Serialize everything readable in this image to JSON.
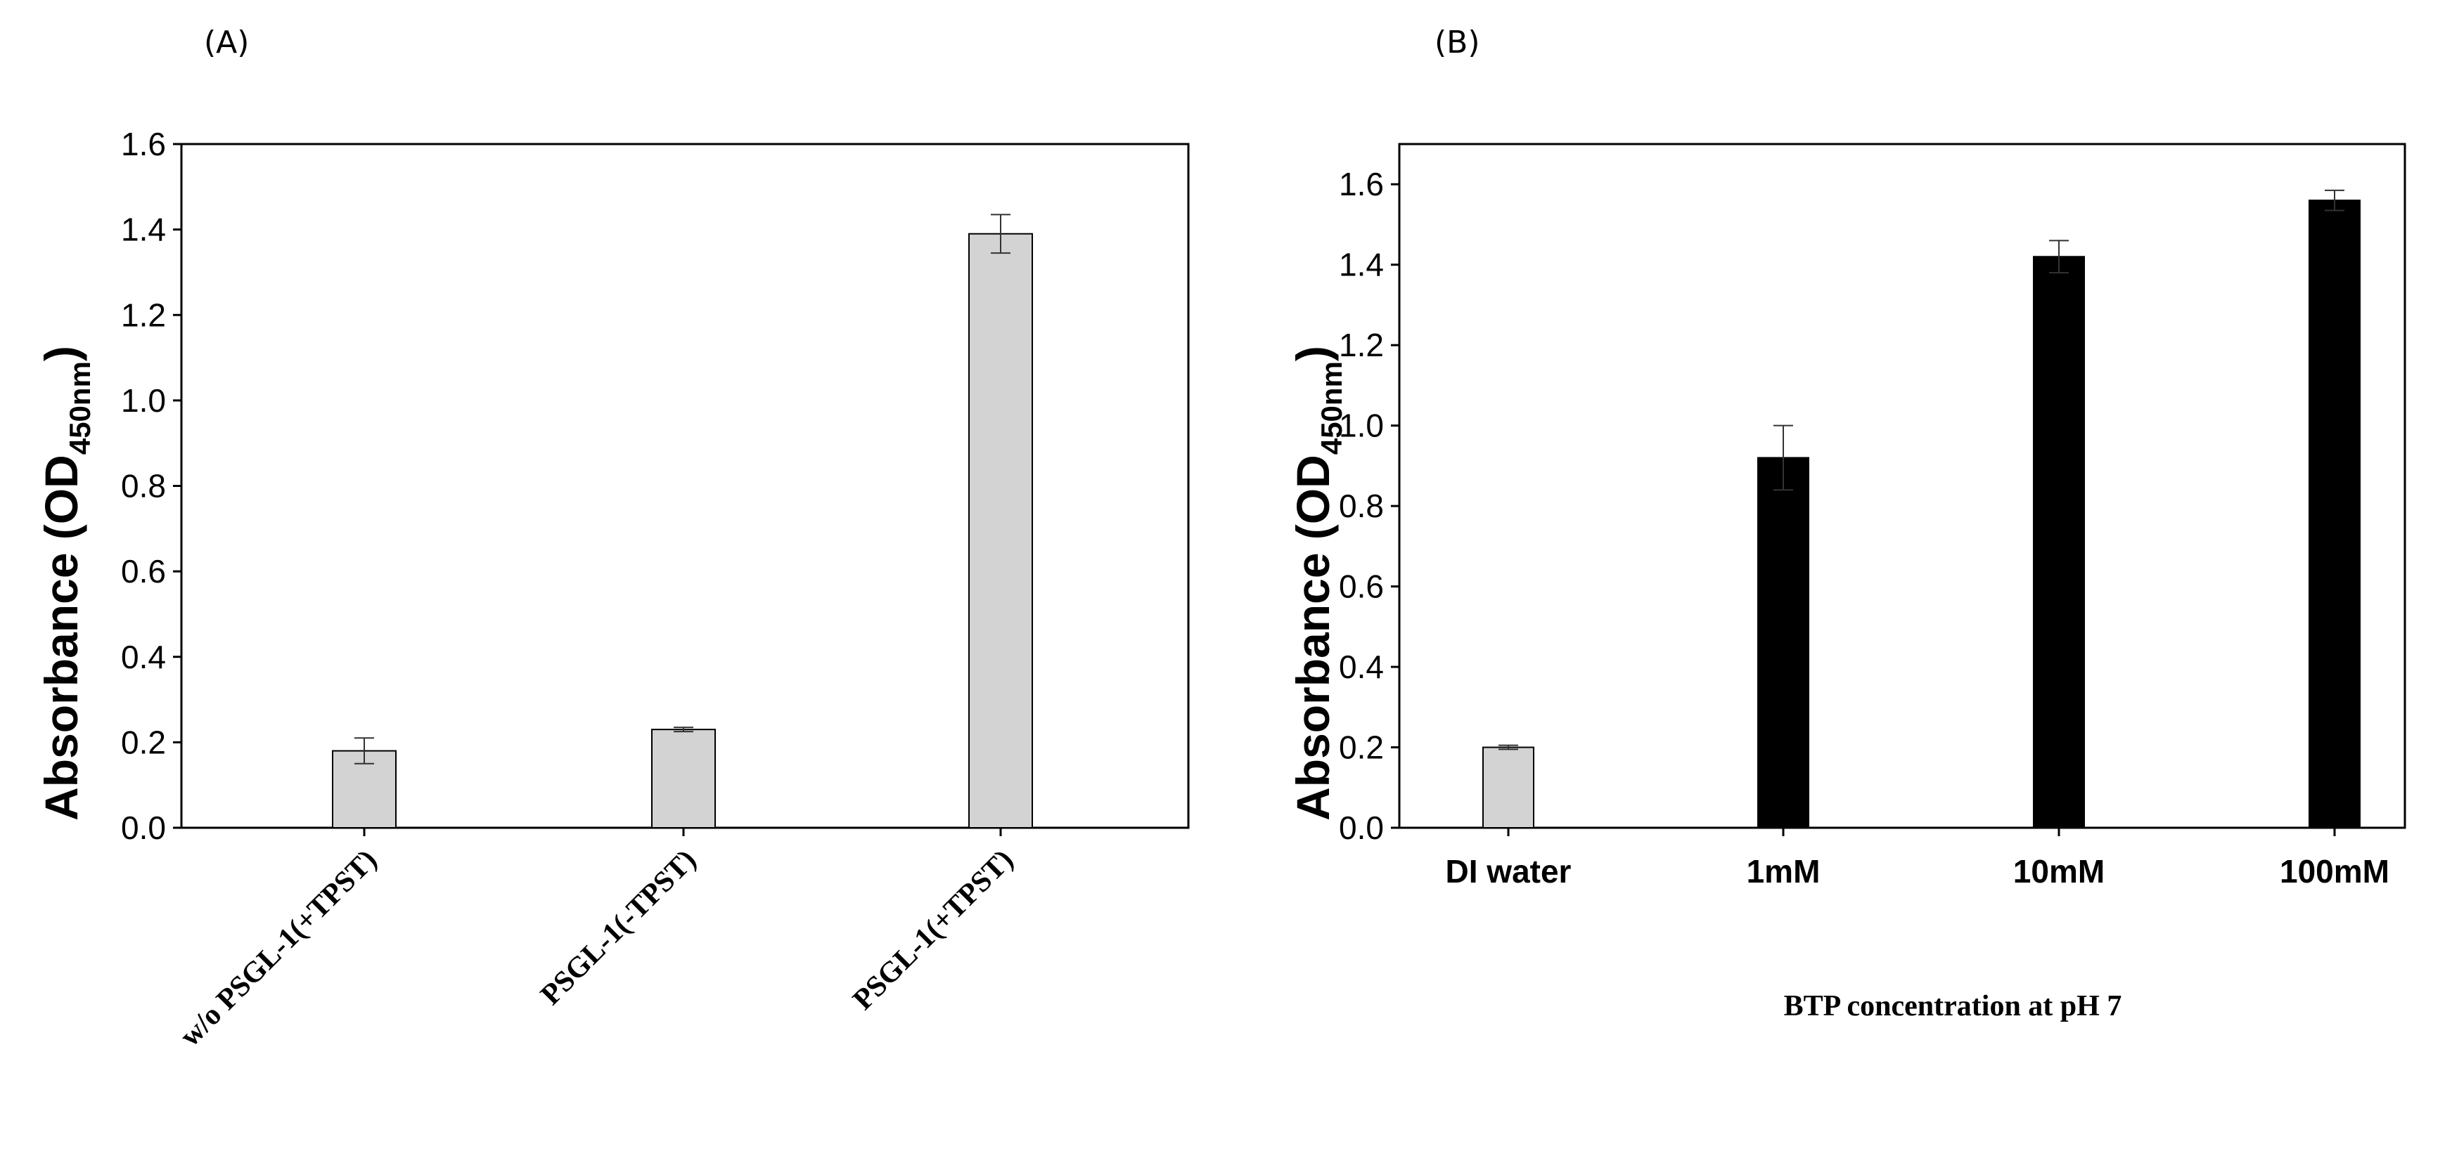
{
  "chart_data": [
    {
      "panel_label": "(A)",
      "type": "bar",
      "ylabel": "Absorbance (OD",
      "ylabel_sub": "450nm",
      "ylabel_close": ")",
      "xlabel": "",
      "ylim": [
        0,
        1.6
      ],
      "yticks": [
        0.0,
        0.2,
        0.4,
        0.6,
        0.8,
        1.0,
        1.2,
        1.4,
        1.6
      ],
      "categories": [
        "w/o PSGL-1(+TPST)",
        "PSGL-1(-TPST)",
        "PSGL-1(+TPST)"
      ],
      "values": [
        0.18,
        0.23,
        1.39
      ],
      "errors": [
        0.03,
        0.005,
        0.045
      ],
      "bar_colors": [
        "#d3d3d3",
        "#d3d3d3",
        "#d3d3d3"
      ]
    },
    {
      "panel_label": "(B)",
      "type": "bar",
      "ylabel": "Absorbance (OD",
      "ylabel_sub": "450nm",
      "ylabel_close": ")",
      "xlabel": "BTP concentration at pH 7",
      "ylim": [
        0,
        1.7
      ],
      "yticks": [
        0.0,
        0.2,
        0.4,
        0.6,
        0.8,
        1.0,
        1.2,
        1.4,
        1.6
      ],
      "categories": [
        "DI water",
        "1mM",
        "10mM",
        "100mM"
      ],
      "values": [
        0.2,
        0.92,
        1.42,
        1.56
      ],
      "errors": [
        0.005,
        0.08,
        0.04,
        0.025
      ],
      "bar_colors": [
        "#d3d3d3",
        "#000000",
        "#000000",
        "#000000"
      ]
    }
  ]
}
